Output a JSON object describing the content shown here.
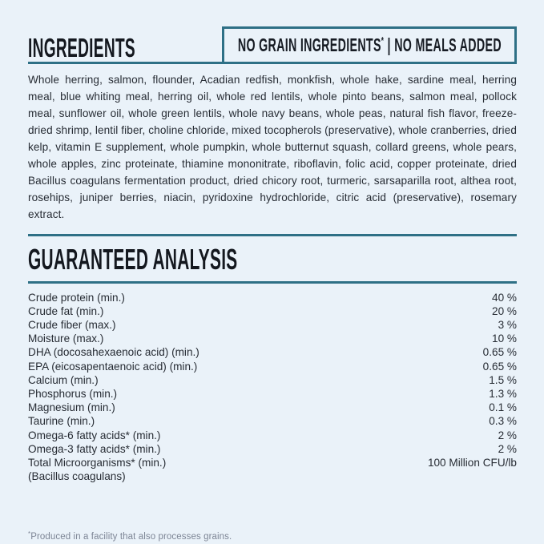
{
  "page": {
    "background_color": "#eaf2f9",
    "accent_color": "#2e7086",
    "text_color": "#272c34"
  },
  "header": {
    "title": "INGREDIENTS",
    "badge": {
      "no_grain_label": "NO GRAIN INGREDIENTS",
      "no_grain_asterisk": "*",
      "separator": "|",
      "no_meals_label": "NO MEALS ADDED"
    }
  },
  "ingredients": {
    "text": "Whole herring, salmon, flounder, Acadian redfish, monkfish, whole hake, sardine meal, herring meal, blue whiting meal, herring oil, whole red lentils, whole pinto beans, salmon meal, pollock meal, sunflower oil, whole green lentils, whole navy beans, whole peas, natural fish flavor, freeze-dried shrimp, lentil fiber, choline chloride, mixed tocopherols (preservative), whole cranberries, dried kelp, vitamin E supplement, whole pumpkin, whole butternut squash, collard greens, whole pears, whole apples, zinc proteinate, thiamine mononitrate, riboflavin, folic acid, copper proteinate, dried Bacillus coagulans fermentation product, dried chicory root, turmeric, sarsaparilla root, althea root, rosehips, juniper berries, niacin, pyridoxine hydrochloride, citric acid (preservative), rosemary extract."
  },
  "guaranteed_analysis": {
    "title": "GUARANTEED ANALYSIS",
    "rows": [
      {
        "label": "Crude protein (min.)",
        "value": "40 %"
      },
      {
        "label": "Crude fat (min.)",
        "value": "20 %"
      },
      {
        "label": "Crude fiber (max.)",
        "value": "3 %"
      },
      {
        "label": "Moisture (max.)",
        "value": "10 %"
      },
      {
        "label": "DHA (docosahexaenoic acid) (min.)",
        "value": "0.65 %"
      },
      {
        "label": "EPA (eicosapentaenoic acid) (min.)",
        "value": "0.65 %"
      },
      {
        "label": "Calcium (min.)",
        "value": "1.5 %"
      },
      {
        "label": "Phosphorus (min.)",
        "value": "1.3 %"
      },
      {
        "label": "Magnesium (min.)",
        "value": "0.1 %"
      },
      {
        "label": "Taurine (min.)",
        "value": "0.3 %"
      },
      {
        "label": "Omega-6 fatty acids* (min.)",
        "value": "2 %"
      },
      {
        "label": "Omega-3 fatty acids* (min.)",
        "value": "2 %"
      },
      {
        "label": "Total Microorganisms* (min.)",
        "value": "100 Million CFU/lb",
        "sublabel": "(Bacillus coagulans)"
      }
    ]
  },
  "footnote": {
    "asterisk": "*",
    "text": "Produced in a facility that also processes grains."
  }
}
